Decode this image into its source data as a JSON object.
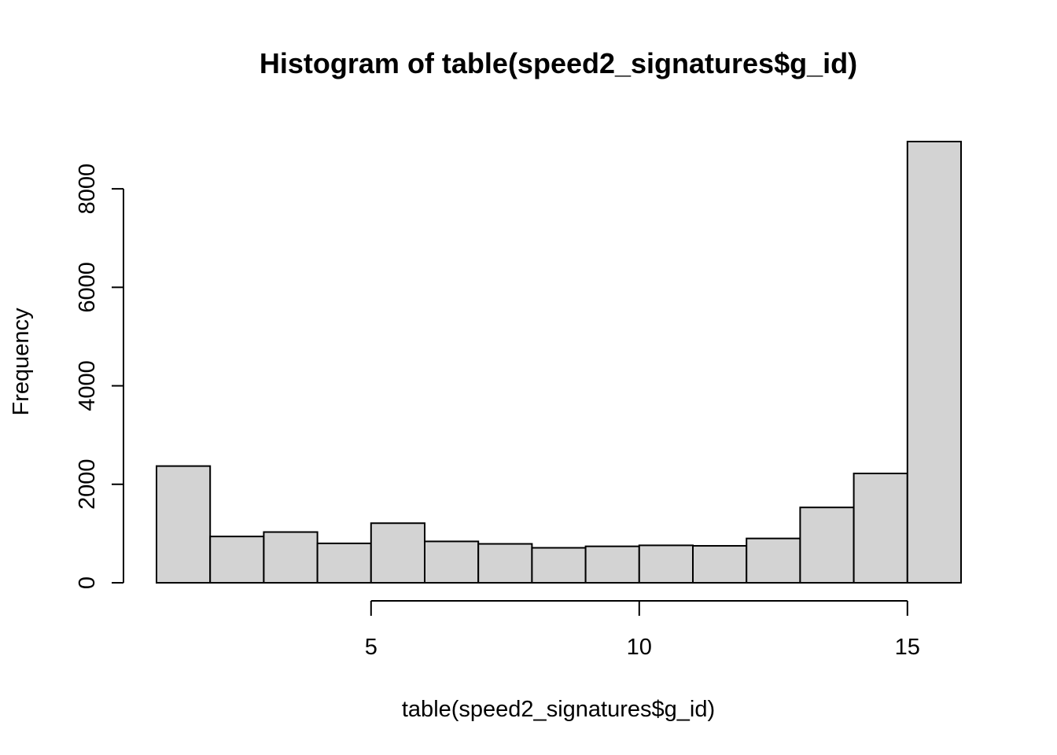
{
  "chart_data": {
    "type": "bar",
    "title": "Histogram of table(speed2_signatures$g_id)",
    "xlabel": "table(speed2_signatures$g_id)",
    "ylabel": "Frequency",
    "bin_edges": [
      1,
      2,
      3,
      4,
      5,
      6,
      7,
      8,
      9,
      10,
      11,
      12,
      13,
      14,
      15,
      16
    ],
    "values": [
      2370,
      940,
      1030,
      800,
      1210,
      840,
      790,
      710,
      740,
      760,
      750,
      900,
      1530,
      2220,
      8960
    ],
    "xlim": [
      1,
      16
    ],
    "ylim": [
      0,
      8960
    ],
    "x_ticks": [
      5,
      10,
      15
    ],
    "x_tick_labels": [
      "5",
      "10",
      "15"
    ],
    "y_ticks": [
      0,
      2000,
      4000,
      6000,
      8000
    ],
    "y_tick_labels": [
      "0",
      "2000",
      "4000",
      "6000",
      "8000"
    ],
    "grid": false,
    "colors": {
      "bar_fill": "#d3d3d3",
      "bar_stroke": "#000000"
    }
  }
}
